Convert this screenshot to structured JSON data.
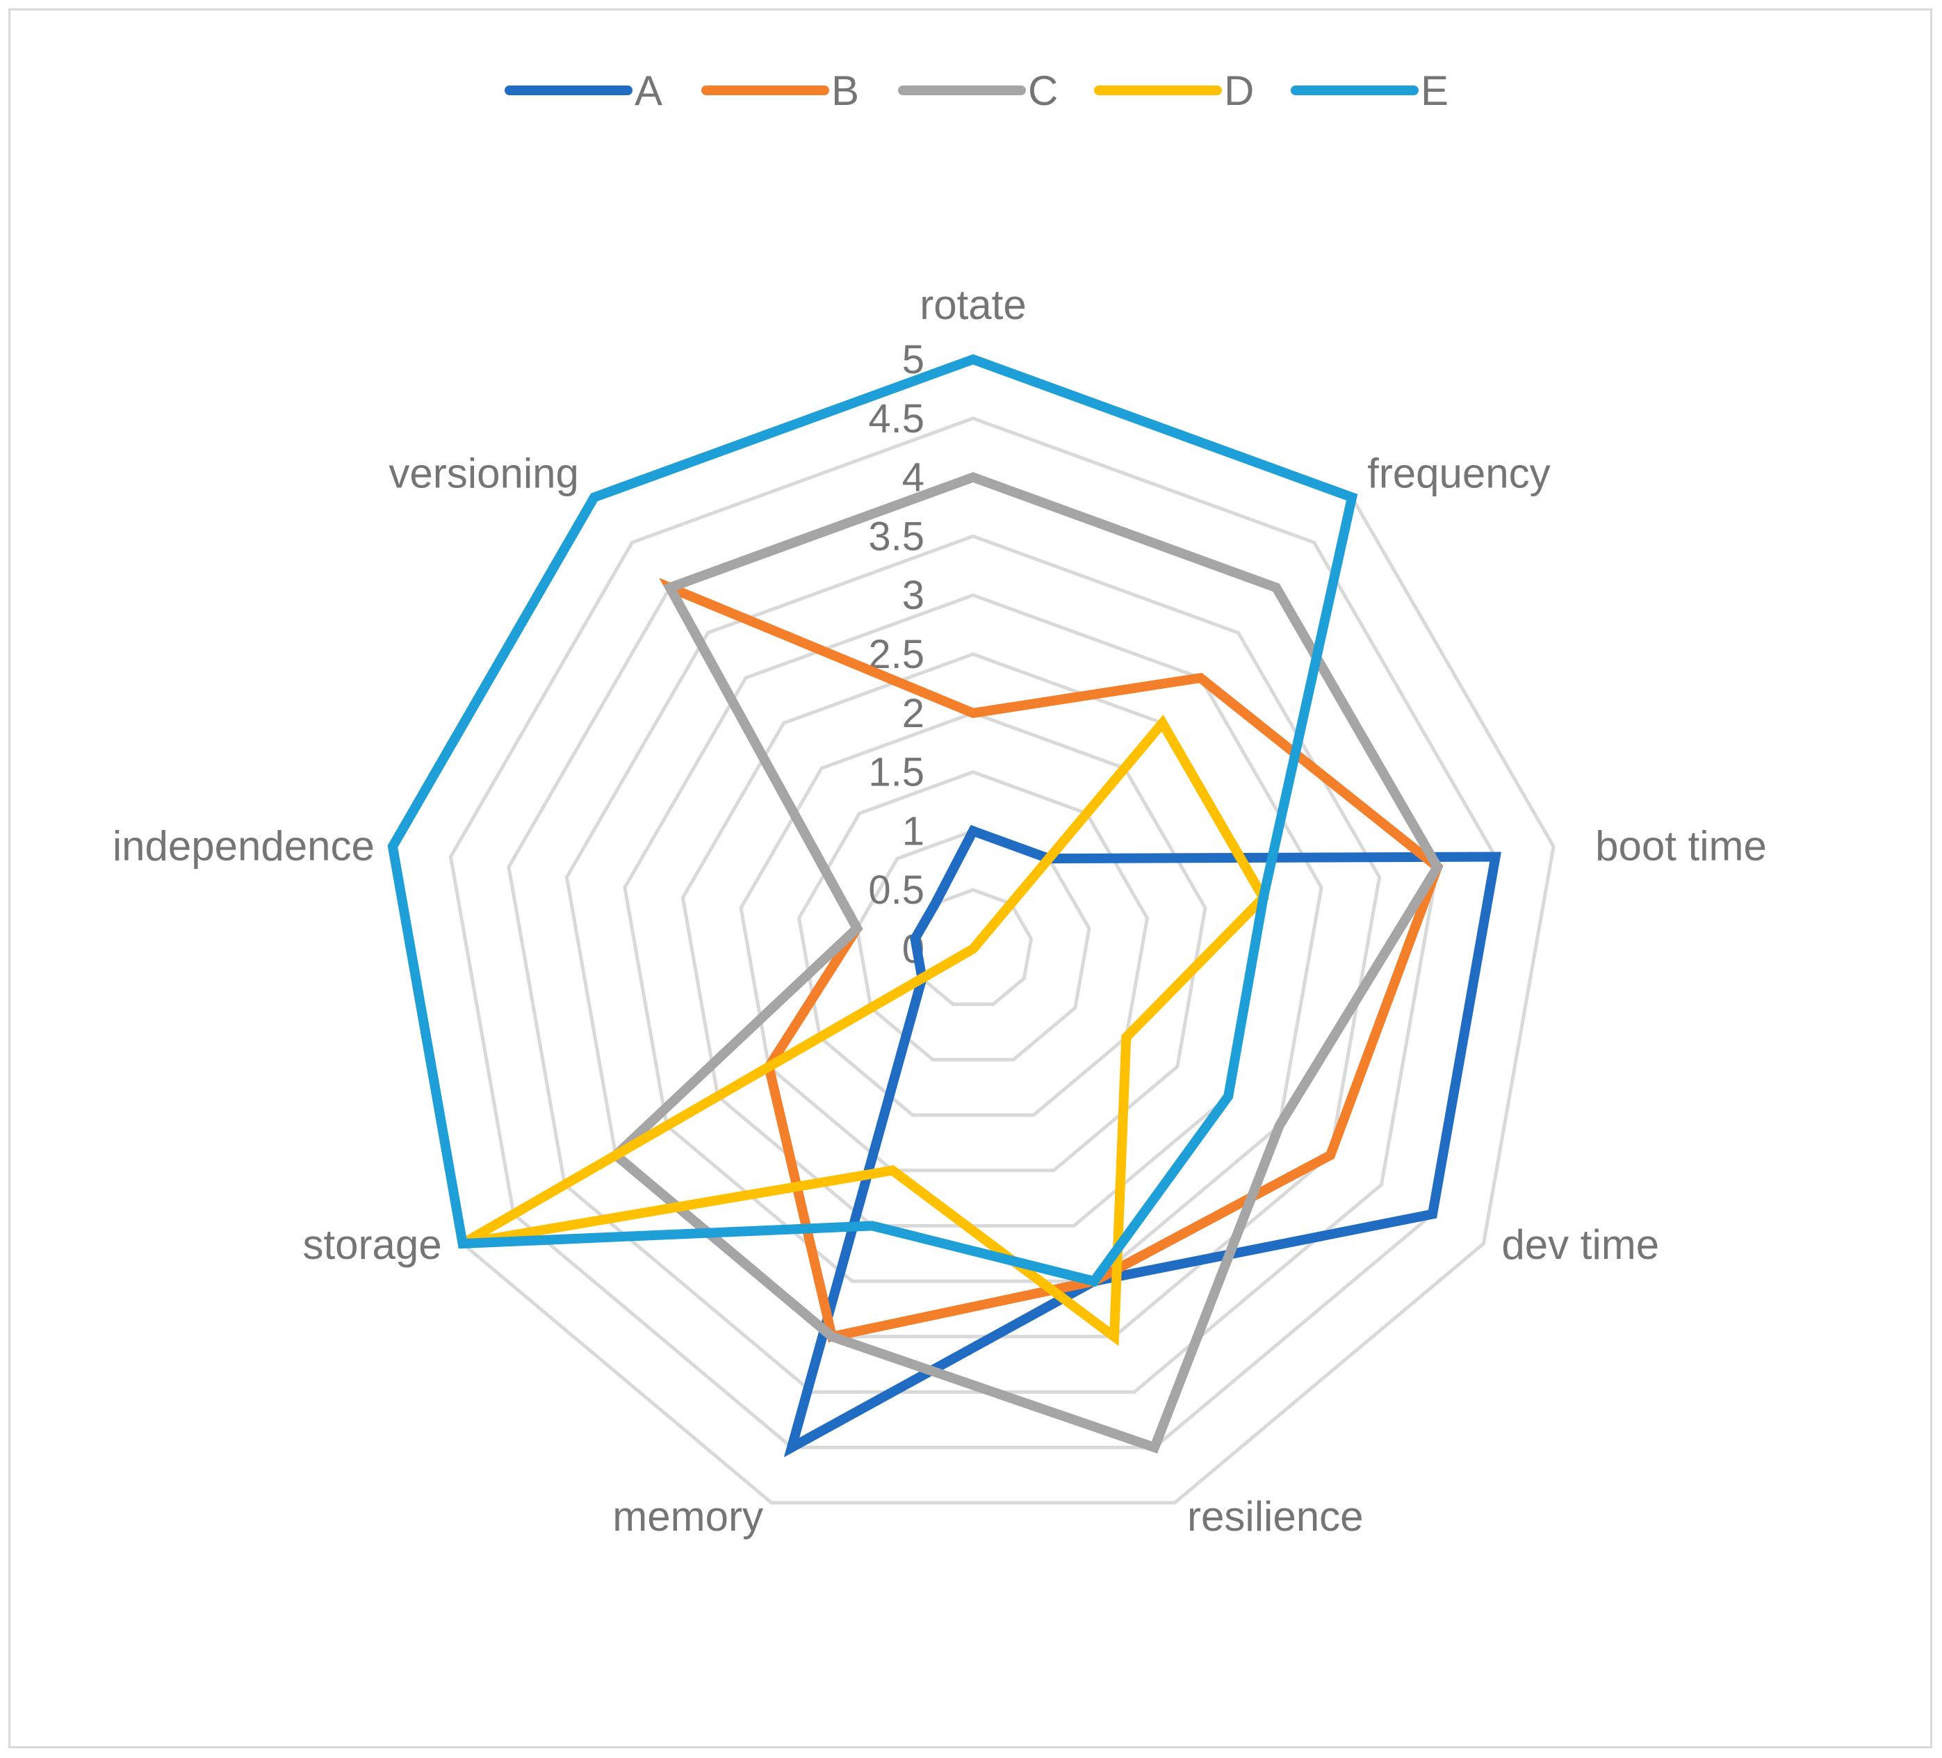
{
  "chart_data": {
    "type": "radar",
    "title": "",
    "axes": [
      "rotate",
      "frequency",
      "boot time",
      "dev time",
      "resilience",
      "memory",
      "storage",
      "independence",
      "versioning"
    ],
    "scale": {
      "min": 0,
      "max": 5,
      "step": 0.5
    },
    "ticks": [
      "0",
      "0.5",
      "1",
      "1.5",
      "2",
      "2.5",
      "3",
      "3.5",
      "4",
      "4.5",
      "5"
    ],
    "grid": true,
    "legend_position": "top",
    "series": [
      {
        "name": "A",
        "color": "#1f6cc2",
        "values": [
          1,
          1,
          4.5,
          4.5,
          3,
          4.5,
          0.5,
          0.5,
          0.5
        ]
      },
      {
        "name": "B",
        "color": "#f47f2a",
        "values": [
          2,
          3,
          4,
          3.5,
          3,
          3.5,
          2,
          1,
          4
        ]
      },
      {
        "name": "C",
        "color": "#a5a5a5",
        "values": [
          4,
          4,
          4,
          3,
          4.5,
          3.5,
          3.5,
          1,
          4
        ]
      },
      {
        "name": "D",
        "color": "#ffc000",
        "values": [
          0,
          2.5,
          2.5,
          1.5,
          3.5,
          2,
          5,
          0,
          0
        ]
      },
      {
        "name": "E",
        "color": "#1e9fd8",
        "values": [
          5,
          5,
          2.5,
          2.5,
          3,
          2.5,
          5,
          5,
          5
        ]
      }
    ]
  }
}
